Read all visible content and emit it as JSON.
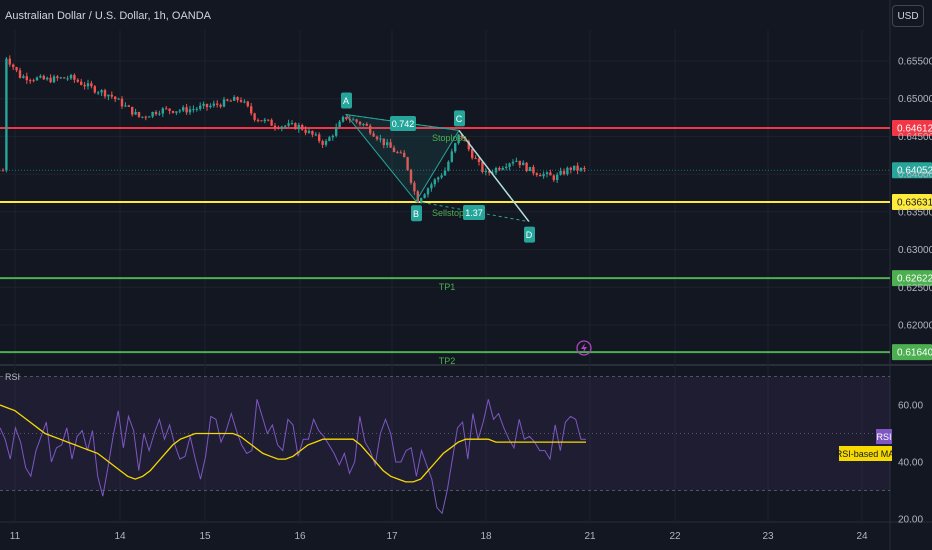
{
  "header": {
    "title": "Australian Dollar / U.S. Dollar, 1h, OANDA",
    "currency_button": "USD"
  },
  "colors": {
    "up": "#26a69a",
    "down": "#ef5350",
    "red_line": "#f23645",
    "yellow_line": "#ffeb3b",
    "green_line": "#4caf50",
    "rsi": "#7e57c2",
    "rsi_ma": "#f5d900",
    "pattern": "#26a69a"
  },
  "chart_data": [
    {
      "type": "candlestick",
      "x_ticks": [
        "11",
        "14",
        "15",
        "16",
        "17",
        "18",
        "21",
        "22",
        "23",
        "24"
      ],
      "y_ticks": [
        "0.65500",
        "0.65000",
        "0.64500",
        "0.64000",
        "0.63500",
        "0.63000",
        "0.62500",
        "0.62000"
      ],
      "ylim": [
        0.6158,
        0.6585
      ],
      "last_price": "0.64052",
      "levels": [
        {
          "label": "0.64612",
          "value": 0.64612,
          "color": "#f23645",
          "name": "",
          "role": "red"
        },
        {
          "label": "0.63631",
          "value": 0.63631,
          "color": "#ffeb3b",
          "name": "",
          "role": "yellow"
        },
        {
          "label": "0.62622",
          "value": 0.62622,
          "color": "#4caf50",
          "name": "TP1",
          "role": "tp1"
        },
        {
          "label": "0.61640",
          "value": 0.6164,
          "color": "#4caf50",
          "name": "TP2",
          "role": "tp2"
        }
      ],
      "pattern_points": [
        {
          "label": "A",
          "value": 0.6479
        },
        {
          "label": "B",
          "value": 0.6364
        },
        {
          "label": "C",
          "value": 0.6458
        },
        {
          "label": "D",
          "value": 0.6337
        }
      ],
      "annotations": {
        "ratio_ab": "0.742",
        "ratio_cd": "1.37",
        "stoploss": "Stoploss",
        "sellstop": "Sellstop"
      }
    },
    {
      "type": "line",
      "title": "RSI",
      "ylim": [
        18,
        72
      ],
      "y_ticks": [
        "60.00",
        "40.00",
        "20.00"
      ],
      "band_upper": 70,
      "band_lower": 30,
      "mid": 50,
      "series": [
        {
          "name": "RSI",
          "values": [
            52,
            48,
            41,
            52,
            47,
            38,
            35,
            44,
            49,
            54,
            40,
            45,
            46,
            52,
            41,
            49,
            51,
            44,
            51,
            35,
            28,
            38,
            49,
            58,
            45,
            56,
            51,
            37,
            50,
            44,
            50,
            55,
            48,
            53,
            46,
            41,
            42,
            49,
            41,
            34,
            42,
            56,
            55,
            47,
            51,
            57,
            51,
            46,
            43,
            44,
            62,
            56,
            50,
            53,
            46,
            44,
            55,
            53,
            42,
            48,
            48,
            55,
            51,
            49,
            46,
            43,
            39,
            43,
            36,
            40,
            56,
            47,
            44,
            39,
            50,
            55,
            50,
            40,
            40,
            44,
            45,
            35,
            44,
            39,
            34,
            24,
            22,
            30,
            41,
            52,
            54,
            41,
            57,
            48,
            54,
            62,
            55,
            57,
            52,
            48,
            45,
            55,
            48,
            49,
            47,
            44,
            44,
            41,
            53,
            44,
            54,
            56,
            55,
            48,
            48
          ]
        },
        {
          "name": "RSI-based MA",
          "values": [
            60,
            59,
            58,
            56,
            54,
            52,
            50,
            49,
            48,
            47,
            46,
            45,
            44,
            43,
            41,
            39,
            37,
            35,
            34,
            35,
            37,
            40,
            43,
            46,
            48,
            49,
            50,
            50,
            50,
            50,
            50,
            50,
            49,
            47,
            45,
            43,
            42,
            41,
            41,
            42,
            44,
            46,
            47,
            48,
            48,
            48,
            48,
            48,
            46,
            43,
            40,
            37,
            35,
            34,
            33,
            33,
            34,
            37,
            40,
            43,
            45,
            47,
            48,
            48,
            48,
            48,
            47,
            47,
            47,
            47,
            47,
            47,
            47,
            47,
            47,
            47,
            47,
            47,
            47
          ]
        }
      ],
      "legend": [
        "RSI",
        "RSI-based MA"
      ]
    }
  ]
}
